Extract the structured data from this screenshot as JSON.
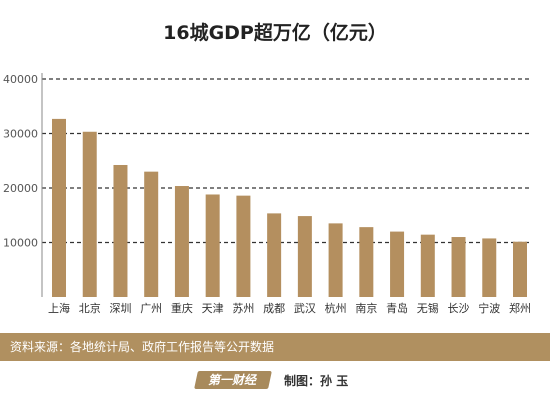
{
  "chart_data": {
    "type": "bar",
    "title": "16城GDP超万亿（亿元）",
    "categories": [
      "上海",
      "北京",
      "深圳",
      "广州",
      "重庆",
      "天津",
      "苏州",
      "成都",
      "武汉",
      "杭州",
      "南京",
      "青岛",
      "无锡",
      "长沙",
      "宁波",
      "郑州"
    ],
    "values": [
      32680,
      30320,
      24222,
      23000,
      20363,
      18810,
      18597,
      15343,
      14847,
      13509,
      12820,
      12002,
      11438,
      11003,
      10746,
      10143
    ],
    "yticks": [
      10000,
      20000,
      30000,
      40000
    ],
    "ylim": [
      0,
      40000
    ],
    "grid": true,
    "colors": {
      "bar": "#b48f5f",
      "grid": "#333333",
      "axis": "#888888",
      "tick_text": "#555555"
    }
  },
  "source": "资料来源：各地统计局、政府工作报告等公开数据",
  "footer": {
    "logo_text": "第一财经",
    "credit_label": "制图：",
    "credit_name": "孙 玉"
  }
}
